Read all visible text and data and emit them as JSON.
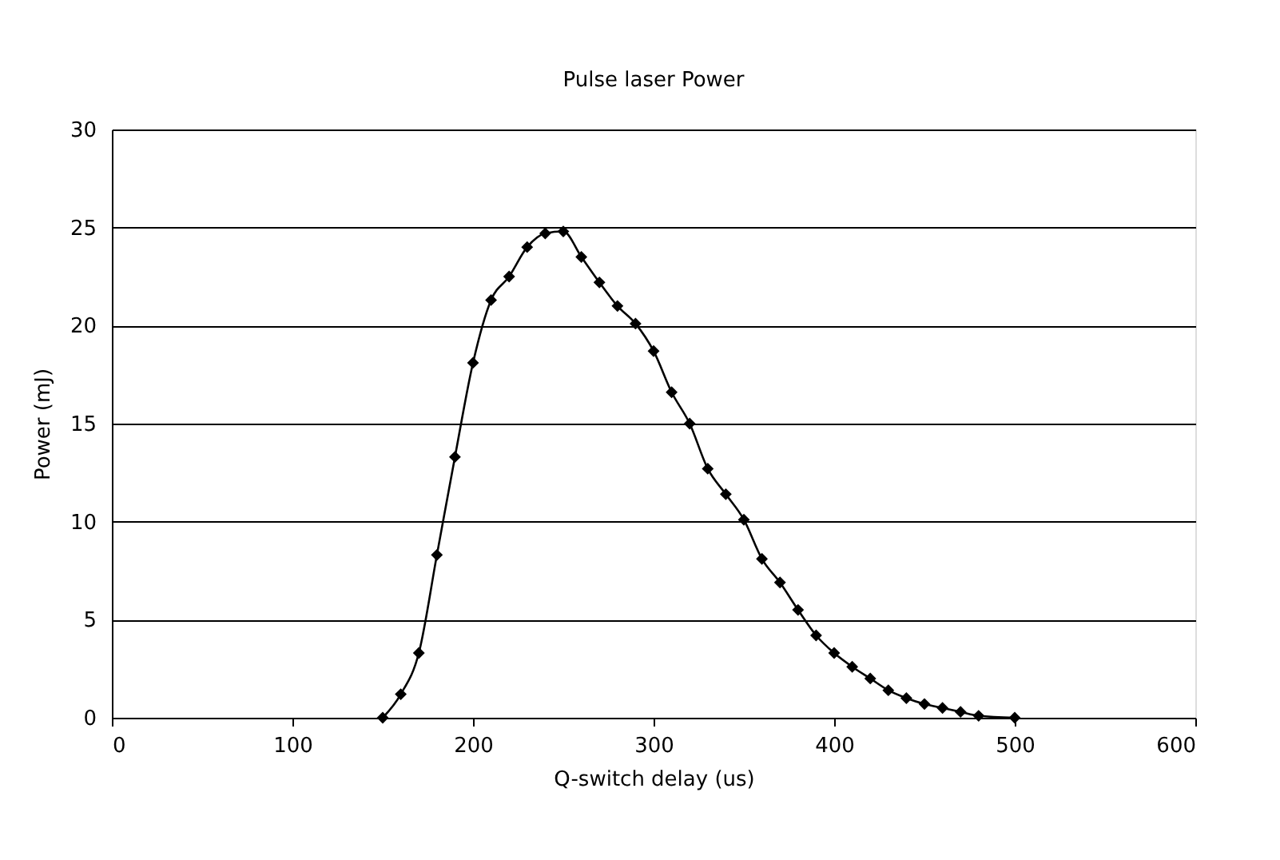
{
  "chart_data": {
    "type": "line",
    "title": "Pulse laser Power",
    "xlabel": "Q-switch delay (us)",
    "ylabel": "Power (mJ)",
    "x": [
      150,
      160,
      170,
      180,
      190,
      200,
      210,
      220,
      230,
      240,
      250,
      260,
      270,
      280,
      290,
      300,
      310,
      320,
      330,
      340,
      350,
      360,
      370,
      380,
      390,
      400,
      410,
      420,
      430,
      440,
      450,
      460,
      470,
      480,
      500
    ],
    "series": [
      {
        "color": "#000000",
        "values": [
          0,
          1.2,
          3.3,
          8.3,
          13.3,
          18.1,
          21.3,
          22.5,
          24.0,
          24.7,
          24.8,
          23.5,
          22.2,
          21.0,
          20.1,
          18.7,
          16.6,
          15.0,
          12.7,
          11.4,
          10.1,
          8.1,
          6.9,
          5.5,
          4.2,
          3.3,
          2.6,
          2.0,
          1.4,
          1.0,
          0.7,
          0.5,
          0.3,
          0.1,
          0
        ]
      }
    ],
    "xlim": [
      0,
      600
    ],
    "xticks": [
      0,
      100,
      200,
      300,
      400,
      500,
      600
    ],
    "ylim": [
      0,
      30
    ],
    "yticks": [
      0,
      5,
      10,
      15,
      20,
      25,
      30
    ],
    "grid": "y",
    "marker": "diamond",
    "line_style": "solid"
  }
}
